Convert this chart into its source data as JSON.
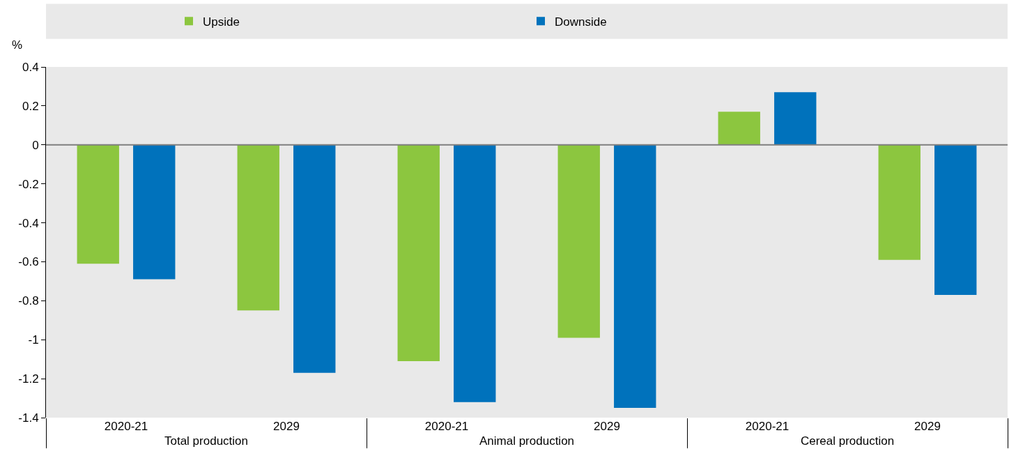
{
  "chart_data": {
    "type": "bar",
    "ylabel": "%",
    "categories": [
      "2020-21",
      "2029",
      "2020-21",
      "2029",
      "2020-21",
      "2029"
    ],
    "annotations": [
      "Total production",
      "Animal production",
      "Cereal production"
    ],
    "series": [
      {
        "name": "Upside",
        "color": "#8cc63f",
        "values": [
          -0.61,
          -0.85,
          -1.11,
          -0.99,
          0.17,
          -0.59
        ]
      },
      {
        "name": "Downside",
        "color": "#0072bc",
        "values": [
          -0.69,
          -1.17,
          -1.32,
          -1.35,
          0.27,
          -0.77
        ]
      }
    ],
    "ylim": [
      -1.4,
      0.4
    ],
    "yticks": [
      -1.4,
      -1.2,
      -1,
      -0.8,
      -0.6,
      -0.4,
      -0.2,
      0,
      0.2,
      0.4
    ],
    "ref_lines": [
      {
        "axis": "y",
        "value": 0,
        "color": "#7f7f7f"
      }
    ],
    "grid": false,
    "legend": "top"
  }
}
